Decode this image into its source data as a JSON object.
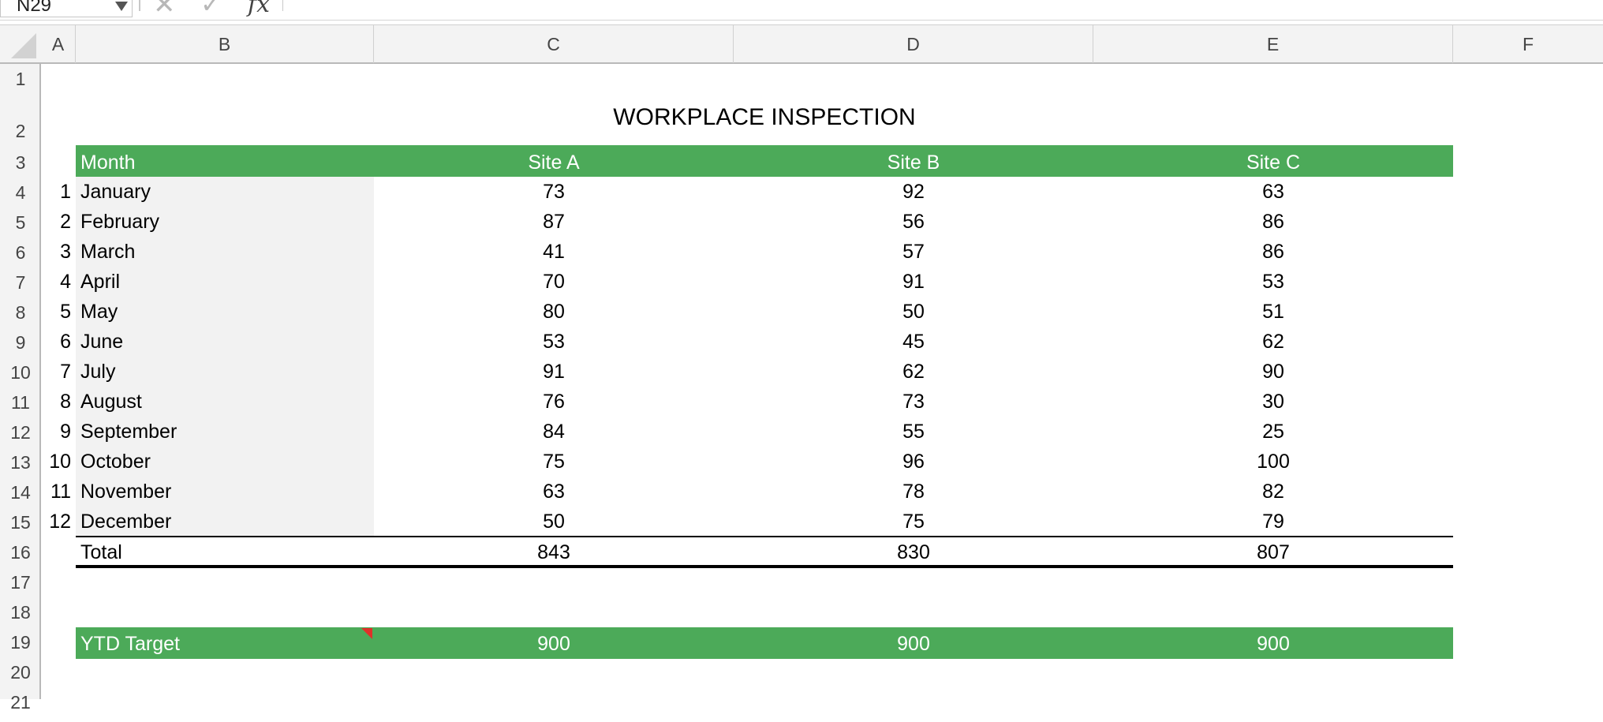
{
  "formula_bar": {
    "name_box": "N29",
    "cancel_glyph": "✕",
    "enter_glyph": "✓",
    "fx_glyph": "fx"
  },
  "columns": [
    "A",
    "B",
    "C",
    "D",
    "E",
    "F"
  ],
  "row_numbers": [
    "1",
    "2",
    "3",
    "4",
    "5",
    "6",
    "7",
    "8",
    "9",
    "10",
    "11",
    "12",
    "13",
    "14",
    "15",
    "16",
    "17",
    "18",
    "19",
    "20",
    "21"
  ],
  "sheet": {
    "title": "WORKPLACE INSPECTION",
    "header": {
      "month": "Month",
      "site_a": "Site A",
      "site_b": "Site B",
      "site_c": "Site C"
    },
    "rows": [
      {
        "index": "1",
        "month": "January",
        "a": "73",
        "b": "92",
        "c": "63"
      },
      {
        "index": "2",
        "month": "February",
        "a": "87",
        "b": "56",
        "c": "86"
      },
      {
        "index": "3",
        "month": "March",
        "a": "41",
        "b": "57",
        "c": "86"
      },
      {
        "index": "4",
        "month": "April",
        "a": "70",
        "b": "91",
        "c": "53"
      },
      {
        "index": "5",
        "month": "May",
        "a": "80",
        "b": "50",
        "c": "51"
      },
      {
        "index": "6",
        "month": "June",
        "a": "53",
        "b": "45",
        "c": "62"
      },
      {
        "index": "7",
        "month": "July",
        "a": "91",
        "b": "62",
        "c": "90"
      },
      {
        "index": "8",
        "month": "August",
        "a": "76",
        "b": "73",
        "c": "30"
      },
      {
        "index": "9",
        "month": "September",
        "a": "84",
        "b": "55",
        "c": "25"
      },
      {
        "index": "10",
        "month": "October",
        "a": "75",
        "b": "96",
        "c": "100"
      },
      {
        "index": "11",
        "month": "November",
        "a": "63",
        "b": "78",
        "c": "82"
      },
      {
        "index": "12",
        "month": "December",
        "a": "50",
        "b": "75",
        "c": "79"
      }
    ],
    "total": {
      "label": "Total",
      "a": "843",
      "b": "830",
      "c": "807"
    },
    "target": {
      "label": "YTD Target",
      "a": "900",
      "b": "900",
      "c": "900"
    }
  },
  "colors": {
    "header_green": "#4caa59",
    "comment_marker": "#e0302a",
    "month_fill": "#f2f2f2"
  }
}
